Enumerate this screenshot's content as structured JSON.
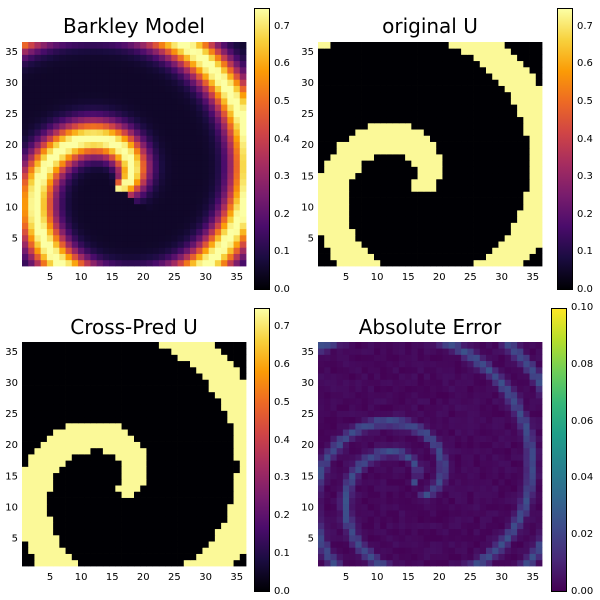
{
  "colormaps": {
    "inferno": [
      "#000004",
      "#1b0c41",
      "#4a0c6b",
      "#781c6d",
      "#a52c60",
      "#cf4446",
      "#ed6925",
      "#fb9b06",
      "#f7d13d",
      "#fcffa4"
    ],
    "viridis": [
      "#440154",
      "#482878",
      "#3e4989",
      "#31688e",
      "#26828e",
      "#1f9e89",
      "#35b779",
      "#6ece58",
      "#b5de2b",
      "#fde725"
    ]
  },
  "chart_data": [
    {
      "type": "heatmap",
      "title": "Barkley Model",
      "xlabel": "",
      "ylabel": "",
      "grid_size": [
        36,
        36
      ],
      "xticks": [
        5,
        10,
        15,
        20,
        25,
        30,
        35
      ],
      "yticks": [
        5,
        10,
        15,
        20,
        25,
        30,
        35
      ],
      "xlim": [
        0.5,
        36.5
      ],
      "ylim": [
        0.5,
        36.5
      ],
      "colormap": "inferno",
      "clim": [
        0,
        0.75
      ],
      "colorbar_ticks": [
        "0.0",
        "0.1",
        "0.2",
        "0.3",
        "0.4",
        "0.5",
        "0.6",
        "0.7"
      ],
      "field": "smooth spiral, peak ~0.7 along double spiral arms centered near (15,13)"
    },
    {
      "type": "heatmap",
      "title": "original U",
      "xlabel": "",
      "ylabel": "",
      "grid_size": [
        36,
        36
      ],
      "xticks": [
        5,
        10,
        15,
        20,
        25,
        30,
        35
      ],
      "yticks": [
        5,
        10,
        15,
        20,
        25,
        30,
        35
      ],
      "xlim": [
        0.5,
        36.5
      ],
      "ylim": [
        0.5,
        36.5
      ],
      "colormap": "inferno",
      "clim": [
        0,
        0.75
      ],
      "colorbar_ticks": [
        "0.0",
        "0.1",
        "0.2",
        "0.3",
        "0.4",
        "0.5",
        "0.6",
        "0.7"
      ],
      "field": "thresholded spiral, values ~0 or ~0.75"
    },
    {
      "type": "heatmap",
      "title": "Cross-Pred U",
      "xlabel": "",
      "ylabel": "",
      "grid_size": [
        36,
        36
      ],
      "xticks": [
        5,
        10,
        15,
        20,
        25,
        30,
        35
      ],
      "yticks": [
        5,
        10,
        15,
        20,
        25,
        30,
        35
      ],
      "xlim": [
        0.5,
        36.5
      ],
      "ylim": [
        0.5,
        36.5
      ],
      "colormap": "inferno",
      "clim": [
        0,
        0.75
      ],
      "colorbar_ticks": [
        "0.0",
        "0.1",
        "0.2",
        "0.3",
        "0.4",
        "0.5",
        "0.6",
        "0.7"
      ],
      "field": "thresholded spiral, values ~0 or ~0.75"
    },
    {
      "type": "heatmap",
      "title": "Absolute Error",
      "xlabel": "",
      "ylabel": "",
      "grid_size": [
        36,
        36
      ],
      "xticks": [
        5,
        10,
        15,
        20,
        25,
        30,
        35
      ],
      "yticks": [
        5,
        10,
        15,
        20,
        25,
        30,
        35
      ],
      "xlim": [
        0.5,
        36.5
      ],
      "ylim": [
        0.5,
        36.5
      ],
      "colormap": "viridis",
      "clim": [
        0,
        0.1
      ],
      "colorbar_ticks": [
        "0.00",
        "0.02",
        "0.04",
        "0.06",
        "0.08",
        "0.10"
      ],
      "field": "small errors (<0.03) along spiral boundaries"
    }
  ]
}
